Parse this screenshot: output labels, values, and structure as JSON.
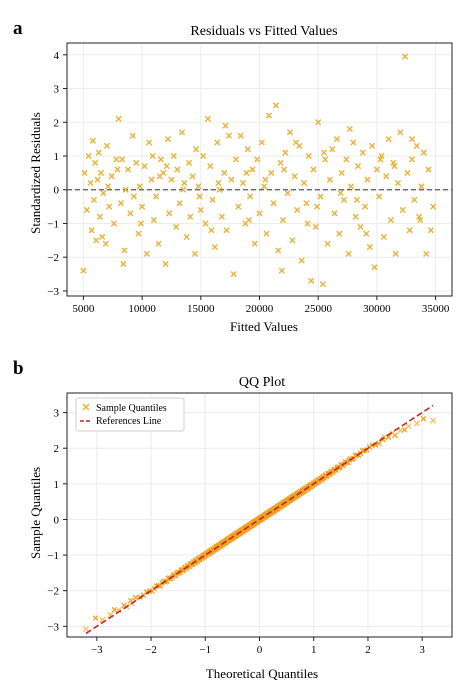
{
  "chart_data": [
    {
      "panel_label": "a",
      "type": "scatter",
      "title": "Residuals vs Fitted Values",
      "xlabel": "Fitted Values",
      "ylabel": "Standardized Residuals",
      "xlim": [
        3600,
        36400
      ],
      "ylim": [
        -3.15,
        4.35
      ],
      "xticks": [
        5000,
        10000,
        15000,
        20000,
        25000,
        30000,
        35000
      ],
      "xtick_labels": [
        "5000",
        "10000",
        "15000",
        "20000",
        "25000",
        "30000",
        "35000"
      ],
      "yticks": [
        -3,
        -2,
        -1,
        0,
        1,
        2,
        3,
        4
      ],
      "ytick_labels": [
        "−3",
        "−2",
        "−1",
        "0",
        "1",
        "2",
        "3",
        "4"
      ],
      "grid": true,
      "reference_line": {
        "y": 0,
        "style": "dashed",
        "color": "#555555"
      },
      "marker": "x",
      "color": "#e8b23a",
      "points": [
        [
          5000,
          -2.4
        ],
        [
          5100,
          0.5
        ],
        [
          5300,
          -0.6
        ],
        [
          5450,
          1.0
        ],
        [
          5600,
          0.2
        ],
        [
          5700,
          -1.2
        ],
        [
          5800,
          1.45
        ],
        [
          5900,
          -0.3
        ],
        [
          6000,
          0.8
        ],
        [
          6100,
          -1.5
        ],
        [
          6200,
          0.3
        ],
        [
          6300,
          1.1
        ],
        [
          6400,
          -0.8
        ],
        [
          6500,
          0.5
        ],
        [
          6700,
          -0.1
        ],
        [
          6900,
          -1.6
        ],
        [
          7000,
          1.3
        ],
        [
          7200,
          -0.5
        ],
        [
          7400,
          0.4
        ],
        [
          7600,
          -1.0
        ],
        [
          7800,
          0.9
        ],
        [
          7900,
          0.6
        ],
        [
          8000,
          2.1
        ],
        [
          8200,
          -0.4
        ],
        [
          8400,
          -2.2
        ],
        [
          8500,
          -1.8
        ],
        [
          8600,
          0.0
        ],
        [
          8800,
          0.6
        ],
        [
          9000,
          -0.7
        ],
        [
          9200,
          1.6
        ],
        [
          9300,
          -0.2
        ],
        [
          9500,
          0.8
        ],
        [
          9700,
          -1.3
        ],
        [
          9800,
          0.1
        ],
        [
          10000,
          -0.5
        ],
        [
          10200,
          0.7
        ],
        [
          10400,
          -1.9
        ],
        [
          10600,
          1.4
        ],
        [
          10800,
          0.3
        ],
        [
          11000,
          -0.9
        ],
        [
          11200,
          -0.2
        ],
        [
          11400,
          -1.6
        ],
        [
          11600,
          0.9
        ],
        [
          11800,
          0.5
        ],
        [
          12000,
          -2.2
        ],
        [
          12200,
          1.5
        ],
        [
          12300,
          -0.7
        ],
        [
          12500,
          0.3
        ],
        [
          12700,
          1.0
        ],
        [
          12900,
          -1.1
        ],
        [
          13000,
          0.6
        ],
        [
          13200,
          -0.4
        ],
        [
          13400,
          1.7
        ],
        [
          13600,
          0.2
        ],
        [
          13800,
          -1.4
        ],
        [
          14000,
          0.8
        ],
        [
          14100,
          -0.8
        ],
        [
          14300,
          0.4
        ],
        [
          14500,
          -1.9
        ],
        [
          14600,
          1.2
        ],
        [
          14800,
          0.1
        ],
        [
          15000,
          -0.6
        ],
        [
          15200,
          1.0
        ],
        [
          15400,
          -1.0
        ],
        [
          15600,
          2.1
        ],
        [
          15800,
          0.7
        ],
        [
          16000,
          -0.3
        ],
        [
          16200,
          -1.7
        ],
        [
          16400,
          1.4
        ],
        [
          16600,
          0.0
        ],
        [
          16800,
          -0.8
        ],
        [
          17000,
          0.5
        ],
        [
          17200,
          -1.2
        ],
        [
          17400,
          1.6
        ],
        [
          17600,
          0.3
        ],
        [
          17800,
          -2.5
        ],
        [
          18000,
          0.9
        ],
        [
          18200,
          -0.5
        ],
        [
          18400,
          1.6
        ],
        [
          18600,
          0.2
        ],
        [
          18800,
          -1.0
        ],
        [
          19000,
          1.2
        ],
        [
          19200,
          -0.2
        ],
        [
          19400,
          0.6
        ],
        [
          19600,
          -1.6
        ],
        [
          19800,
          0.9
        ],
        [
          20000,
          -0.7
        ],
        [
          20200,
          1.4
        ],
        [
          20400,
          0.1
        ],
        [
          20600,
          -1.3
        ],
        [
          20800,
          2.2
        ],
        [
          21000,
          0.5
        ],
        [
          21200,
          -0.4
        ],
        [
          21400,
          2.5
        ],
        [
          21600,
          -1.8
        ],
        [
          21800,
          0.8
        ],
        [
          22000,
          -0.9
        ],
        [
          22200,
          1.1
        ],
        [
          22400,
          -0.1
        ],
        [
          22600,
          1.7
        ],
        [
          22800,
          -1.5
        ],
        [
          23000,
          0.4
        ],
        [
          23200,
          -0.6
        ],
        [
          23400,
          1.3
        ],
        [
          23600,
          -2.1
        ],
        [
          23800,
          0.2
        ],
        [
          24000,
          -0.4
        ],
        [
          24200,
          1.0
        ],
        [
          24400,
          -2.7
        ],
        [
          24600,
          0.6
        ],
        [
          24800,
          -1.1
        ],
        [
          25000,
          2.0
        ],
        [
          25200,
          -0.2
        ],
        [
          25400,
          -2.8
        ],
        [
          25600,
          0.9
        ],
        [
          25800,
          -1.6
        ],
        [
          26000,
          0.3
        ],
        [
          26200,
          1.2
        ],
        [
          26400,
          -0.7
        ],
        [
          26600,
          1.5
        ],
        [
          26800,
          -1.3
        ],
        [
          27000,
          0.5
        ],
        [
          27200,
          -0.3
        ],
        [
          27400,
          0.9
        ],
        [
          27600,
          -1.9
        ],
        [
          27800,
          0.1
        ],
        [
          28000,
          1.4
        ],
        [
          28200,
          -0.8
        ],
        [
          28400,
          0.7
        ],
        [
          28600,
          -1.1
        ],
        [
          28800,
          1.1
        ],
        [
          29000,
          -0.5
        ],
        [
          29200,
          0.3
        ],
        [
          29400,
          -1.7
        ],
        [
          29600,
          1.3
        ],
        [
          29800,
          -2.3
        ],
        [
          30000,
          0.6
        ],
        [
          30200,
          -0.2
        ],
        [
          30400,
          1.0
        ],
        [
          30600,
          -1.4
        ],
        [
          30800,
          0.4
        ],
        [
          31000,
          1.5
        ],
        [
          31200,
          -0.9
        ],
        [
          31400,
          0.8
        ],
        [
          31600,
          -1.9
        ],
        [
          31800,
          0.2
        ],
        [
          32000,
          1.7
        ],
        [
          32200,
          -0.6
        ],
        [
          32400,
          3.95
        ],
        [
          32600,
          0.5
        ],
        [
          32800,
          -1.2
        ],
        [
          33000,
          0.9
        ],
        [
          33200,
          -0.3
        ],
        [
          33400,
          1.3
        ],
        [
          33600,
          -0.8
        ],
        [
          33800,
          0.1
        ],
        [
          34000,
          1.1
        ],
        [
          34200,
          -1.9
        ],
        [
          34400,
          0.6
        ],
        [
          34600,
          -1.2
        ],
        [
          34800,
          -0.5
        ],
        [
          33000,
          1.5
        ],
        [
          7100,
          0.1
        ],
        [
          9900,
          -1.0
        ],
        [
          13500,
          0.0
        ],
        [
          17100,
          1.9
        ],
        [
          19100,
          -0.9
        ],
        [
          23100,
          1.4
        ],
        [
          26900,
          -0.1
        ],
        [
          29100,
          -1.3
        ],
        [
          31500,
          0.7
        ],
        [
          12100,
          0.7
        ],
        [
          15900,
          -1.2
        ],
        [
          21900,
          -2.4
        ],
        [
          24900,
          -0.5
        ],
        [
          27700,
          1.8
        ],
        [
          8300,
          0.9
        ],
        [
          10900,
          1.0
        ],
        [
          14900,
          -0.2
        ],
        [
          18900,
          0.5
        ],
        [
          22100,
          0.6
        ],
        [
          25500,
          1.1
        ],
        [
          28300,
          -0.3
        ],
        [
          30300,
          0.9
        ],
        [
          33700,
          -0.9
        ],
        [
          6600,
          -1.4
        ],
        [
          11500,
          0.4
        ],
        [
          16500,
          0.2
        ],
        [
          20500,
          0.3
        ],
        [
          24100,
          -1.0
        ]
      ]
    },
    {
      "panel_label": "b",
      "type": "scatter",
      "title": "QQ Plot",
      "xlabel": "Theoretical Quantiles",
      "ylabel": "Sample Quantiles",
      "xlim": [
        -3.55,
        3.55
      ],
      "ylim": [
        -3.3,
        3.55
      ],
      "xticks": [
        -3,
        -2,
        -1,
        0,
        1,
        2,
        3
      ],
      "xtick_labels": [
        "−3",
        "−2",
        "−1",
        "0",
        "1",
        "2",
        "3"
      ],
      "yticks": [
        -3,
        -2,
        -1,
        0,
        1,
        2,
        3
      ],
      "ytick_labels": [
        "−3",
        "−2",
        "−1",
        "0",
        "1",
        "2",
        "3"
      ],
      "grid": true,
      "legend": {
        "position": "top-left",
        "entries": [
          {
            "label": "Sample Quantiles",
            "marker": "x",
            "color": "#f0b030"
          },
          {
            "label": "References Line",
            "style": "dashed",
            "color": "#c0282a"
          }
        ]
      },
      "reference_line": {
        "slope": 1,
        "intercept": 0,
        "x": [
          -3.2,
          3.2
        ],
        "color": "#c0282a",
        "style": "dashed"
      },
      "sample_quantiles": {
        "n": 400,
        "range": [
          -3.2,
          3.2
        ],
        "tail_deviation": "light tails: upper tail below line, lower tail above line",
        "points": [
          [
            -3.2,
            -3.08
          ],
          [
            -2.9,
            -2.82
          ],
          [
            -2.75,
            -2.68
          ],
          [
            -2.6,
            -2.55
          ],
          [
            -2.45,
            -2.45
          ],
          [
            -2.35,
            -2.35
          ],
          [
            2.3,
            2.32
          ],
          [
            2.45,
            2.42
          ],
          [
            2.6,
            2.5
          ],
          [
            2.75,
            2.62
          ],
          [
            2.9,
            2.7
          ],
          [
            3.2,
            2.78
          ]
        ]
      }
    }
  ]
}
